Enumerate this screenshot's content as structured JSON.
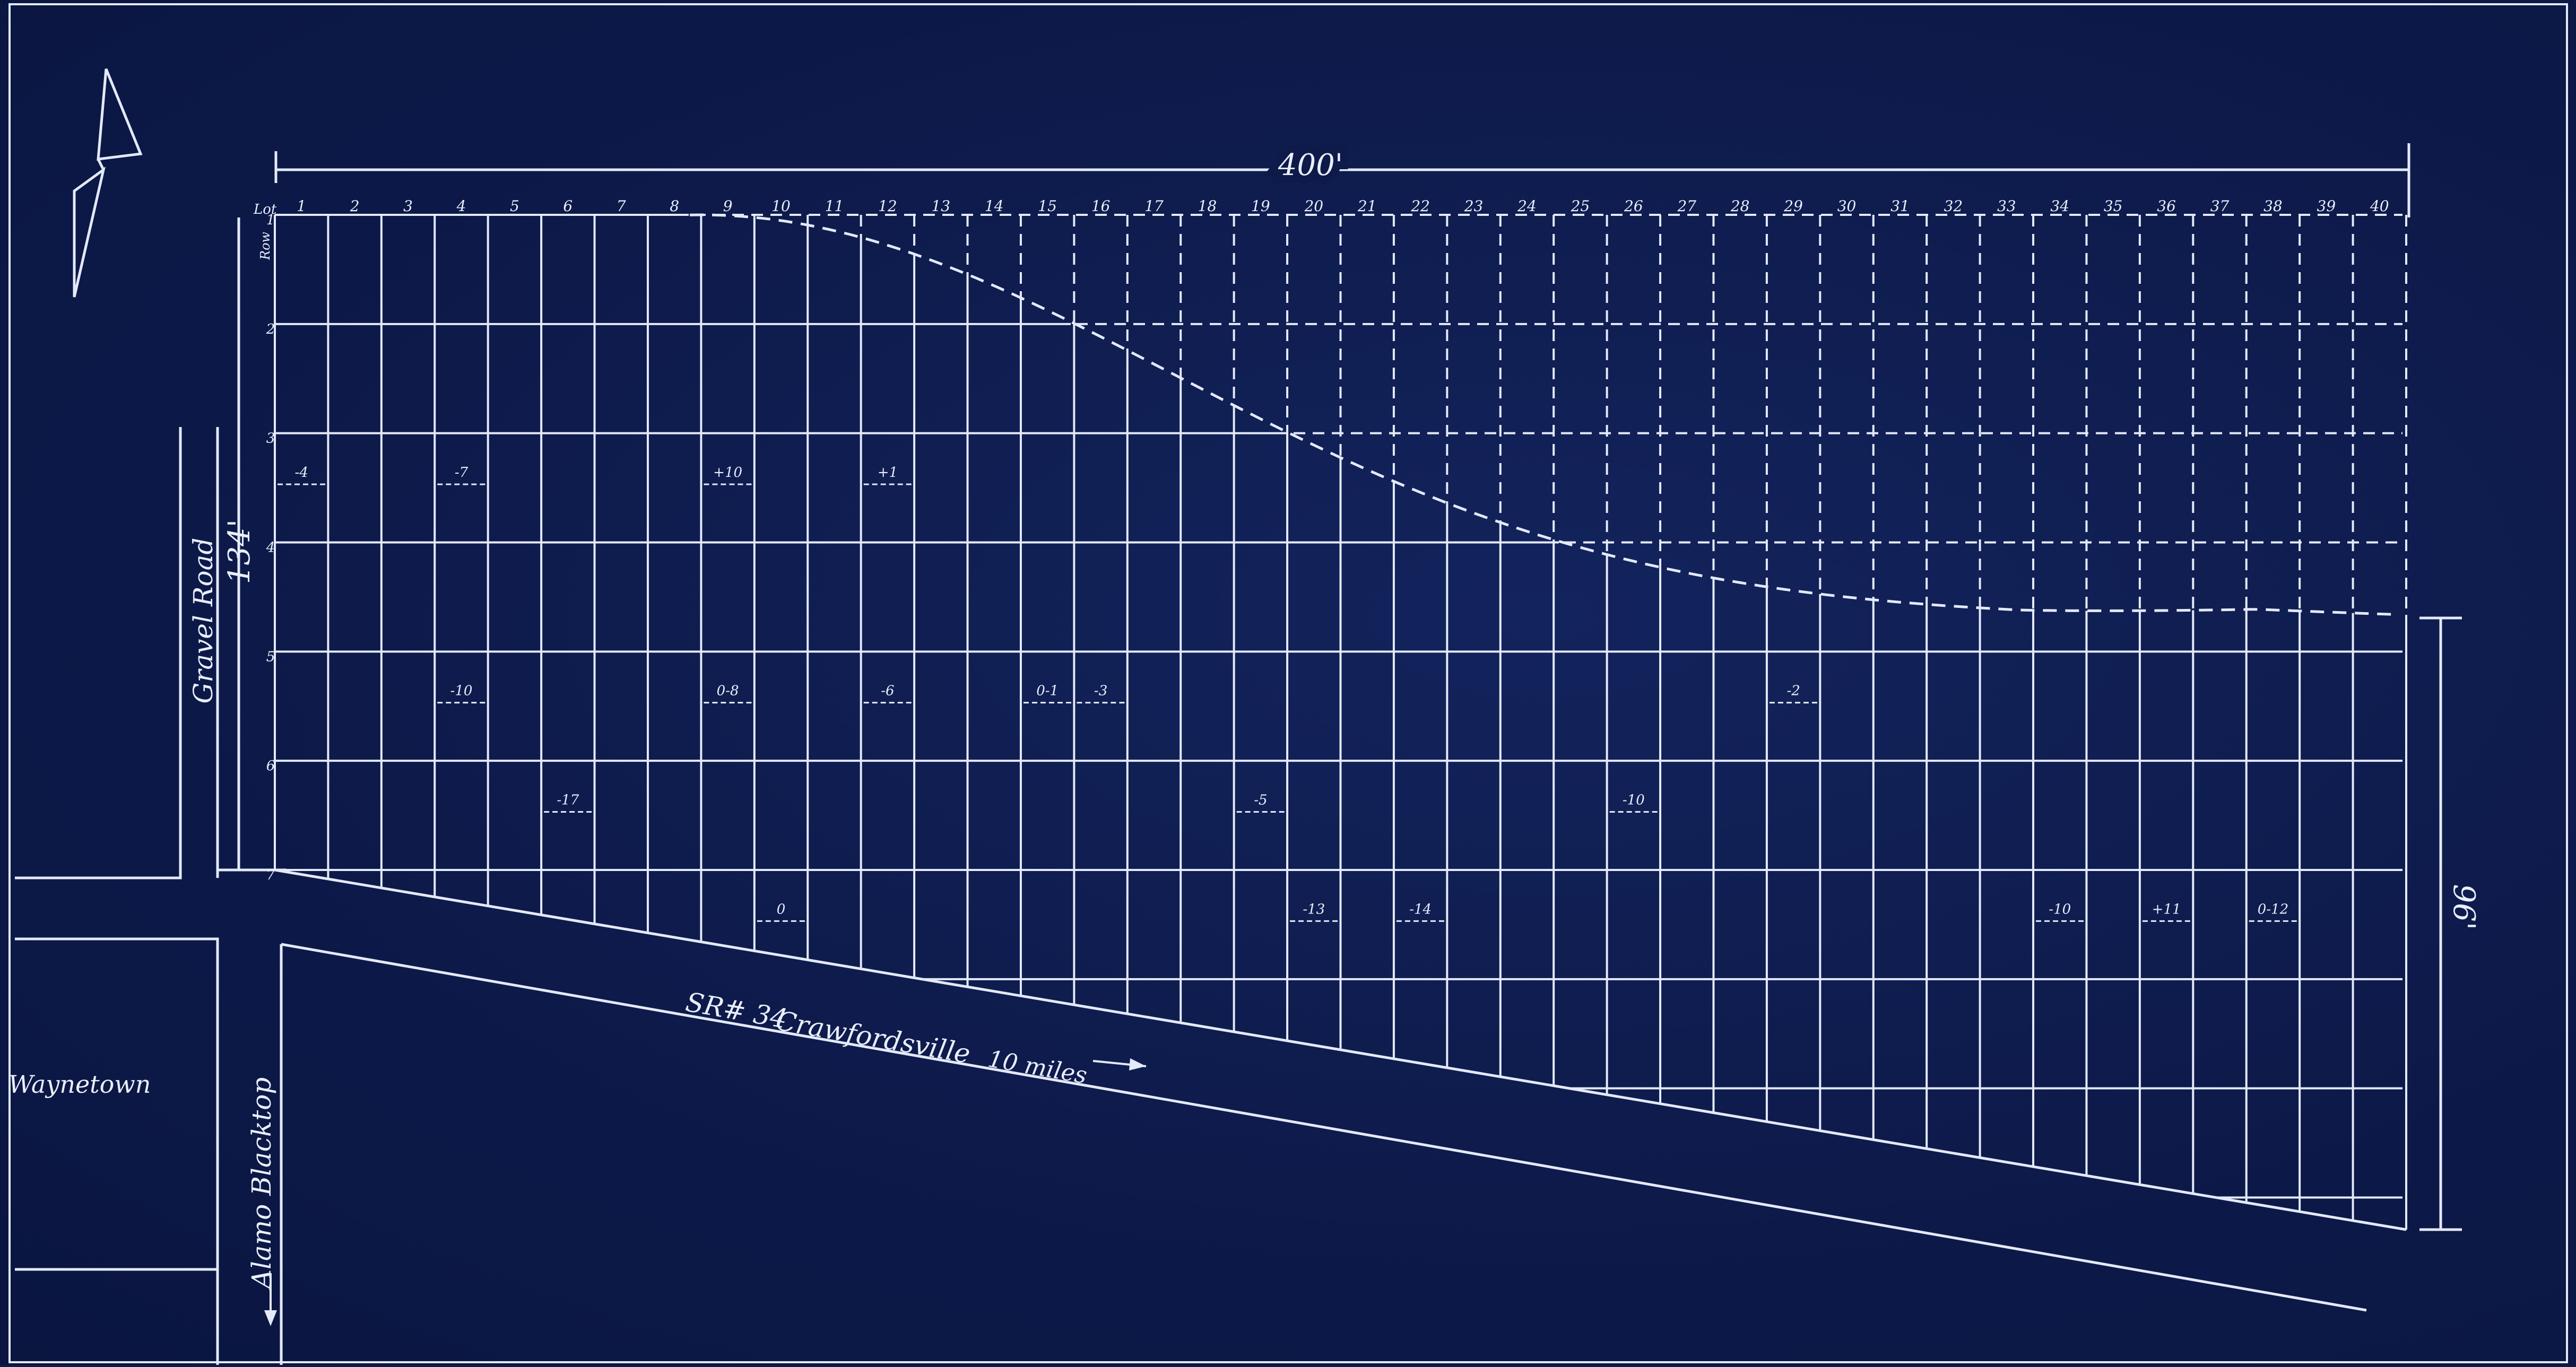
{
  "plat": {
    "frontage_width": "400'",
    "left_depth": "134'",
    "right_depth": "96'",
    "lot_prefix": "Lot",
    "row_prefix": "Row",
    "lot_numbers": [
      "1",
      "2",
      "3",
      "4",
      "5",
      "6",
      "7",
      "8",
      "9",
      "10",
      "11",
      "12",
      "13",
      "14",
      "15",
      "16",
      "17",
      "18",
      "19",
      "20",
      "21",
      "22",
      "23",
      "24",
      "25",
      "26",
      "27",
      "28",
      "29",
      "30",
      "31",
      "32",
      "33",
      "34",
      "35",
      "36",
      "37",
      "38",
      "39",
      "40"
    ],
    "row_numbers": [
      "1",
      "2",
      "3",
      "4",
      "5",
      "6",
      "7"
    ],
    "grade_marks": [
      {
        "lot": 1,
        "row": 3,
        "text": "-4"
      },
      {
        "lot": 4,
        "row": 3,
        "text": "-7"
      },
      {
        "lot": 9,
        "row": 3,
        "text": "+10"
      },
      {
        "lot": 12,
        "row": 3,
        "text": "+1"
      },
      {
        "lot": 15,
        "row": 5,
        "text": "0-1"
      },
      {
        "lot": 4,
        "row": 5,
        "text": "-10"
      },
      {
        "lot": 9,
        "row": 5,
        "text": "0-8"
      },
      {
        "lot": 12,
        "row": 5,
        "text": "-6"
      },
      {
        "lot": 16,
        "row": 5,
        "text": "-3"
      },
      {
        "lot": 6,
        "row": 6,
        "text": "-17"
      },
      {
        "lot": 19,
        "row": 6,
        "text": "-5"
      },
      {
        "lot": 20,
        "row": 7,
        "text": "-13"
      },
      {
        "lot": 22,
        "row": 7,
        "text": "-14"
      },
      {
        "lot": 26,
        "row": 6,
        "text": "-10"
      },
      {
        "lot": 29,
        "row": 5,
        "text": "-2"
      },
      {
        "lot": 34,
        "row": 7,
        "text": "-10"
      },
      {
        "lot": 36,
        "row": 7,
        "text": "+11"
      },
      {
        "lot": 38,
        "row": 7,
        "text": "0-12"
      },
      {
        "lot": 10,
        "row": 7,
        "text": "0"
      }
    ]
  },
  "roads": {
    "gravel_road": "Gravel Road",
    "highway": "SR# 34",
    "highway_direction": "Crawfordsville",
    "highway_distance": "10 miles",
    "side_road": "Alamo Blacktop"
  },
  "places": {
    "town": "Waynetown"
  },
  "colors": {
    "paper": "#0d1a4a",
    "ink": "#e3e9f8"
  },
  "icons": {
    "north_arrow": "north-arrow-icon"
  }
}
